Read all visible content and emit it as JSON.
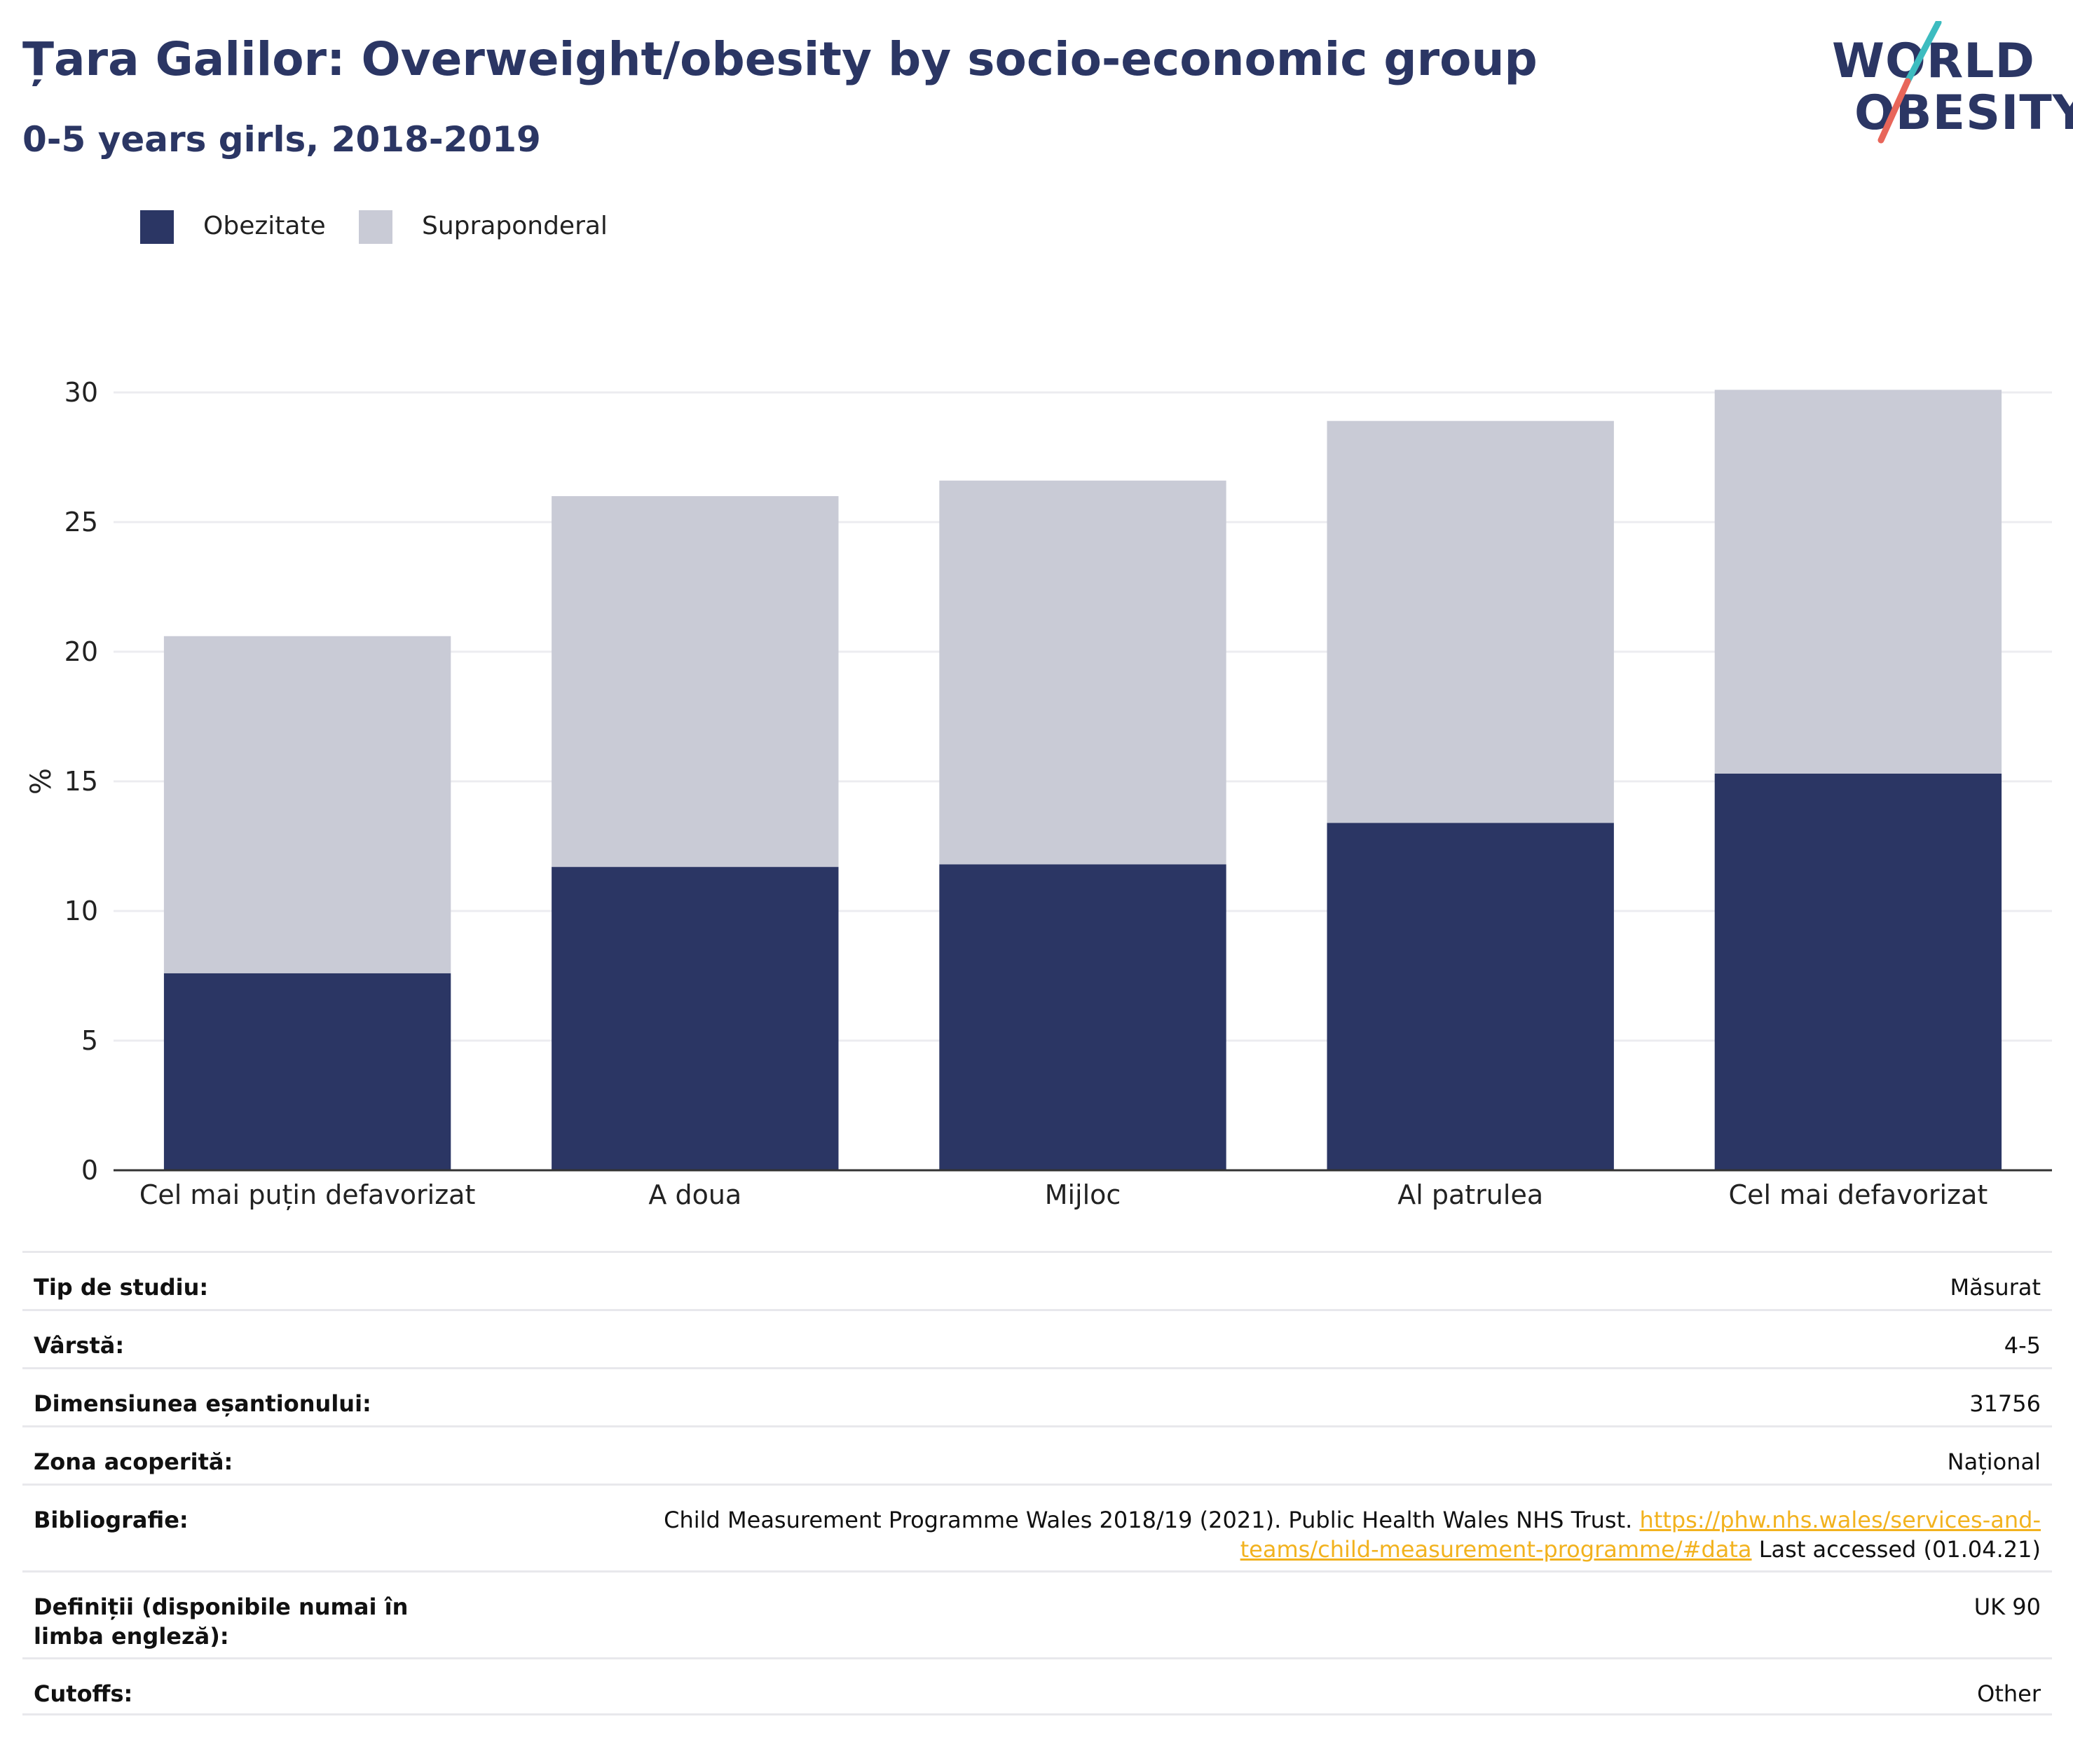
{
  "header": {
    "title": "Țara Galilor: Overweight/obesity by socio-economic group",
    "subtitle": "0-5 years girls, 2018-2019"
  },
  "logo": {
    "line1": "WORLD",
    "line2": "OBESITY",
    "colors": {
      "text": "#2b3664",
      "slash_teal": "#3dbcc0",
      "slash_coral": "#e8665a"
    }
  },
  "colors": {
    "obezitate": "#2b3664",
    "supraponderal": "#c9cbd6",
    "grid": "#ececf0",
    "axis": "#333333",
    "link": "#f2b21e"
  },
  "legend": [
    {
      "label": "Obezitate",
      "color": "#2b3664"
    },
    {
      "label": "Supraponderal",
      "color": "#c9cbd6"
    }
  ],
  "chart_data": {
    "type": "bar",
    "stacked": true,
    "title": "Țara Galilor: Overweight/obesity by socio-economic group",
    "subtitle": "0-5 years girls, 2018-2019",
    "xlabel": "",
    "ylabel": "%",
    "ylim": [
      0,
      30
    ],
    "yticks": [
      0,
      5,
      10,
      15,
      20,
      25,
      30
    ],
    "grid": true,
    "legend_position": "top-left",
    "categories": [
      "Cel mai puțin defavorizat",
      "A doua",
      "Mijloc",
      "Al patrulea",
      "Cel mai defavorizat"
    ],
    "series": [
      {
        "name": "Obezitate",
        "values": [
          7.6,
          11.7,
          11.8,
          13.4,
          15.3
        ]
      },
      {
        "name": "Supraponderal",
        "values": [
          13.0,
          14.3,
          14.8,
          15.5,
          14.8
        ]
      }
    ]
  },
  "details": [
    {
      "label": "Tip de studiu:",
      "value": "Măsurat"
    },
    {
      "label": "Vârstă:",
      "value": "4-5"
    },
    {
      "label": "Dimensiunea eșantionului:",
      "value": "31756"
    },
    {
      "label": "Zona acoperită:",
      "value": "Național"
    },
    {
      "label": "Bibliografie:",
      "value_prefix": "Child Measurement Programme Wales 2018/19 (2021). Public Health Wales NHS Trust.",
      "link_line1": "https://phw.nhs.wales/services-and-",
      "link_line2": "teams/child-measurement-programme/#data",
      "value_suffix": "Last accessed (01.04.21)"
    },
    {
      "label": "Definiții (disponibile numai în limba engleză):",
      "value": "UK 90"
    },
    {
      "label": "Cutoffs:",
      "value": "Other"
    }
  ]
}
